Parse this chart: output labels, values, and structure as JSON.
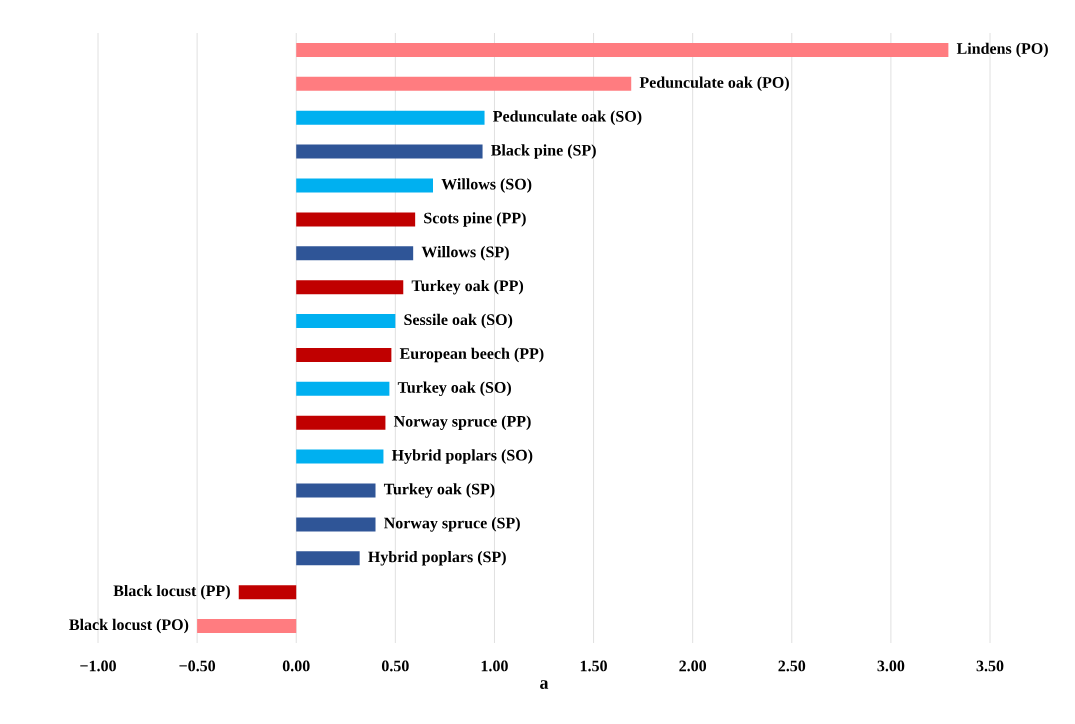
{
  "chart_data": {
    "type": "bar",
    "orientation": "horizontal",
    "xlabel": "a",
    "categories": [
      "Lindens (PO)",
      "Pedunculate oak (PO)",
      "Pedunculate oak (SO)",
      "Black pine (SP)",
      "Willows (SO)",
      "Scots pine (PP)",
      "Willows (SP)",
      "Turkey oak (PP)",
      "Sessile oak (SO)",
      "European beech (PP)",
      "Turkey oak (SO)",
      "Norway spruce (PP)",
      "Hybrid poplars (SO)",
      "Turkey oak (SP)",
      "Norway spruce (SP)",
      "Hybrid poplars (SP)",
      "Black locust (PP)",
      "Black locust (PO)"
    ],
    "values": [
      3.29,
      1.69,
      0.95,
      0.94,
      0.69,
      0.6,
      0.59,
      0.54,
      0.5,
      0.48,
      0.47,
      0.45,
      0.44,
      0.4,
      0.4,
      0.32,
      -0.29,
      -0.5
    ],
    "colors": [
      "#ff7c80",
      "#ff7c80",
      "#00b0f0",
      "#2f5597",
      "#00b0f0",
      "#c00000",
      "#2f5597",
      "#c00000",
      "#00b0f0",
      "#c00000",
      "#00b0f0",
      "#c00000",
      "#00b0f0",
      "#2f5597",
      "#2f5597",
      "#2f5597",
      "#c00000",
      "#ff7c80"
    ],
    "xlim": [
      -1.0,
      3.5
    ],
    "xticks": [
      {
        "value": -1.0,
        "label": "−1.00"
      },
      {
        "value": -0.5,
        "label": "−0.50"
      },
      {
        "value": 0,
        "label": "0.00"
      },
      {
        "value": 0.5,
        "label": "0.50"
      },
      {
        "value": 1.0,
        "label": "1.00"
      },
      {
        "value": 1.5,
        "label": "1.50"
      },
      {
        "value": 2.0,
        "label": "2.00"
      },
      {
        "value": 2.5,
        "label": "2.50"
      },
      {
        "value": 3.0,
        "label": "3.00"
      },
      {
        "value": 3.5,
        "label": "3.50"
      }
    ],
    "grid": "x"
  }
}
